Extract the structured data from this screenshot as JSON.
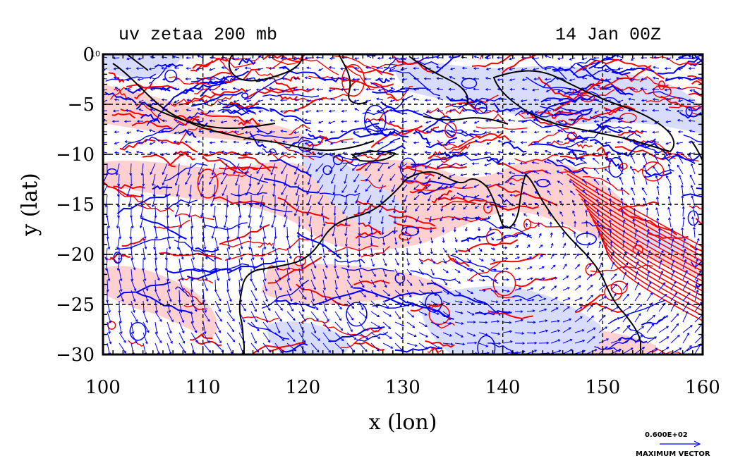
{
  "header": {
    "title": "uv zetaa 200 mb",
    "valid_time": "14 Jan 00Z"
  },
  "axes": {
    "xlabel": "x (lon)",
    "ylabel": "y (lat)",
    "x_ticks": [
      "100",
      "110",
      "120",
      "130",
      "140",
      "150",
      "160"
    ],
    "y_ticks": [
      "0",
      "−5",
      "−10",
      "−15",
      "−20",
      "−25",
      "−30"
    ],
    "corner_label": "10",
    "xlim": [
      100,
      160
    ],
    "ylim": [
      -30,
      0
    ],
    "grid": true
  },
  "legend": {
    "vector_value": "0.600E+02",
    "vector_caption": "MAXIMUM VECTOR"
  },
  "colors": {
    "positive_contour": "#ff0000",
    "positive_fill": "#ffd0d0",
    "negative_contour": "#0000ff",
    "negative_fill": "#d8dcff",
    "vector": "#0000ff",
    "coastline": "#000000",
    "grid": "#000000"
  }
}
